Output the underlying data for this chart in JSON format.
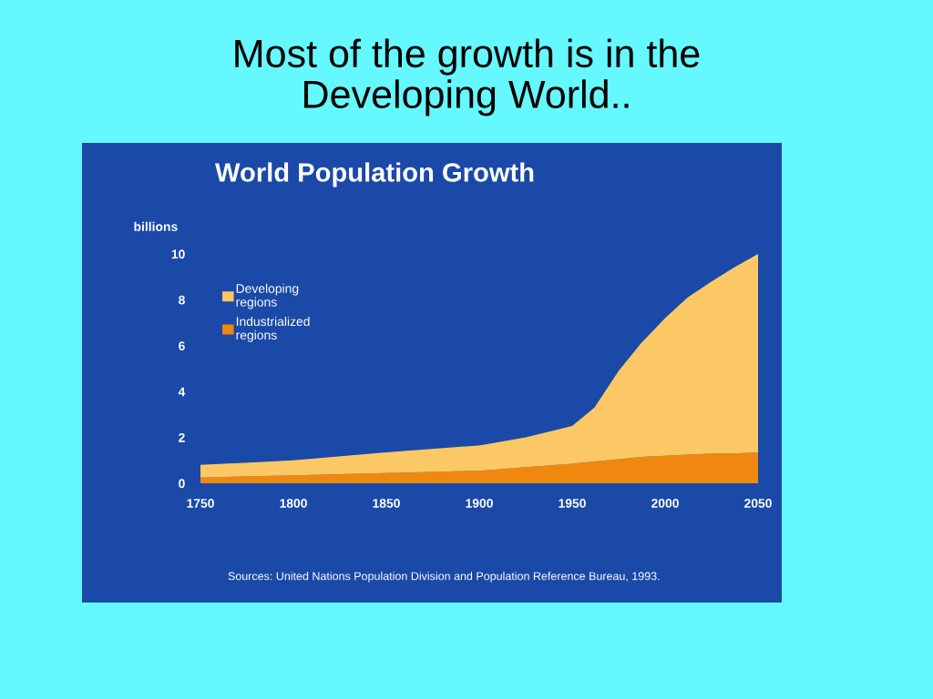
{
  "chart_data": {
    "type": "area",
    "stacked": true,
    "title": "Most of the growth is in the\nDeveloping World..",
    "subtitle": "World Population Growth",
    "ylabel": "billions",
    "x": [
      1750,
      1800,
      1850,
      1900,
      1925,
      1950,
      1962,
      1975,
      1987,
      2000,
      2012,
      2025,
      2037,
      2050
    ],
    "series": [
      {
        "name": "Industrialized regions",
        "color": "#f0880f",
        "values": [
          0.25,
          0.35,
          0.45,
          0.55,
          0.7,
          0.85,
          0.95,
          1.05,
          1.15,
          1.2,
          1.25,
          1.3,
          1.3,
          1.35
        ]
      },
      {
        "name": "Developing regions",
        "color": "#fcc865",
        "values": [
          0.55,
          0.65,
          0.9,
          1.1,
          1.3,
          1.65,
          2.35,
          3.85,
          4.95,
          6.0,
          6.85,
          7.5,
          8.1,
          8.65
        ]
      }
    ],
    "xlim": [
      1750,
      2050
    ],
    "xticks": [
      1750,
      1800,
      1850,
      1900,
      1950,
      2000,
      2050
    ],
    "ylim": [
      0,
      10
    ],
    "yticks": [
      0,
      2,
      4,
      6,
      8,
      10
    ],
    "grid": false,
    "legend": "top left",
    "annotations": [
      "Sources: United Nations Population Division and Population Reference Bureau, 1993."
    ]
  }
}
